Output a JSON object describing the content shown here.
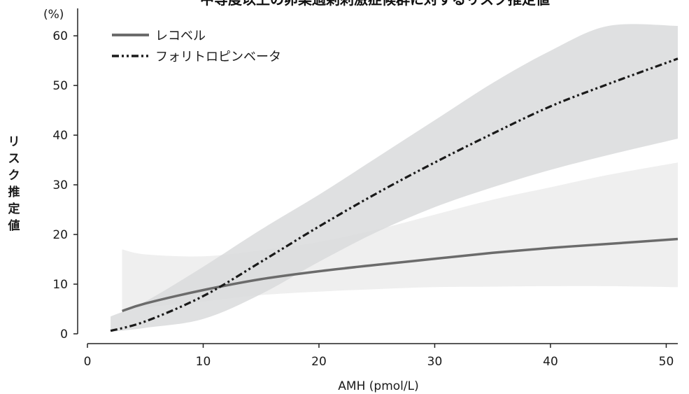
{
  "chart_data": {
    "type": "line",
    "title": "中等度以上の卵巣過剰刺激症候群に対するリスク推定値",
    "xlabel": "AMH (pmol/L)",
    "ylabel": "リスク推定値",
    "yunit": "(%)",
    "xlim": [
      0,
      51
    ],
    "ylim": [
      0,
      62
    ],
    "xticks": [
      0,
      10,
      20,
      30,
      40,
      50
    ],
    "yticks": [
      0,
      10,
      20,
      30,
      40,
      50,
      60
    ],
    "legend_position": "top-left",
    "grid": false,
    "series": [
      {
        "name": "レコベル",
        "style": "solid",
        "color": "#6b6b6b",
        "x": [
          3,
          5,
          10,
          15,
          20,
          25,
          30,
          35,
          40,
          45,
          51
        ],
        "y": [
          4.6,
          6.1,
          8.8,
          11.0,
          12.6,
          13.9,
          15.1,
          16.3,
          17.3,
          18.1,
          19.1
        ],
        "ci_lower": [
          4.6,
          5.3,
          6.5,
          7.8,
          8.5,
          9.0,
          9.4,
          9.5,
          9.6,
          9.6,
          9.4
        ],
        "ci_upper": [
          17.0,
          16.0,
          15.6,
          16.8,
          18.5,
          21.0,
          24.0,
          27.0,
          29.5,
          32.0,
          34.5
        ]
      },
      {
        "name": "フォリトロピンベータ",
        "style": "dash-dot-dot",
        "color": "#1a1a1a",
        "x": [
          2,
          5,
          10,
          15,
          20,
          25,
          30,
          35,
          40,
          45,
          51
        ],
        "y": [
          0.6,
          2.5,
          7.6,
          14.5,
          21.6,
          28.3,
          34.5,
          40.3,
          45.8,
          50.3,
          55.4
        ],
        "ci_lower": [
          0.4,
          1.2,
          3.0,
          8.0,
          14.5,
          20.5,
          25.5,
          29.5,
          33.0,
          36.0,
          39.3
        ],
        "ci_upper": [
          3.5,
          6.5,
          13.5,
          21.0,
          28.0,
          35.5,
          43.0,
          50.5,
          57.0,
          62.0,
          62.0
        ]
      }
    ]
  },
  "colors": {
    "band_recovelle": "#efefef",
    "band_follitropin": "#d9dadc",
    "axis": "#222222"
  }
}
